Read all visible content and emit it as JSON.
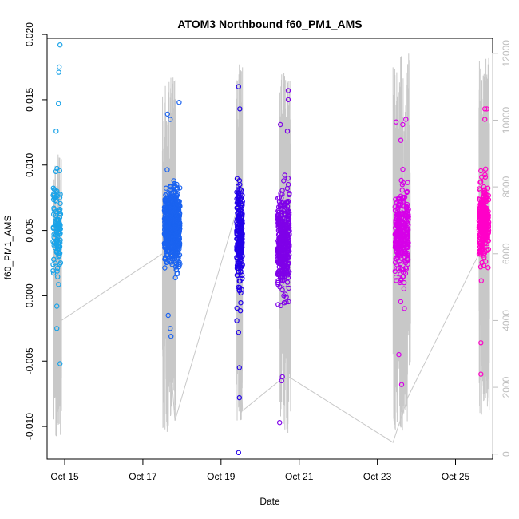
{
  "chart_data": {
    "type": "scatter",
    "title": "ATOM3 Northbound f60_PM1_AMS",
    "xlabel": "Date",
    "ylabel": "f60_PM1_AMS",
    "xlim": [
      14.55,
      25.95
    ],
    "ylim": [
      -0.0125,
      0.0197
    ],
    "y2lim": [
      -150,
      12450
    ],
    "x_ticks": [
      15,
      17,
      19,
      21,
      23,
      25
    ],
    "x_tick_labels": [
      "Oct 15",
      "Oct 17",
      "Oct 19",
      "Oct 21",
      "Oct 23",
      "Oct 25"
    ],
    "y_ticks": [
      -0.01,
      -0.005,
      0.0,
      0.005,
      0.01,
      0.015,
      0.02
    ],
    "y_tick_labels": [
      "-0.010",
      "-0.005",
      "0.000",
      "0.005",
      "0.010",
      "0.015",
      "0.020"
    ],
    "y2_ticks": [
      0,
      2000,
      4000,
      6000,
      8000,
      10000,
      12000
    ],
    "y2_tick_labels": [
      "0",
      "2000",
      "4000",
      "6000",
      "8000",
      "10000",
      "12000"
    ],
    "series": [
      {
        "name": "f60_PM1_AMS (flight 1)",
        "color": "#1aa3e8",
        "x_range": [
          14.7,
          14.9
        ],
        "y_center": 0.0052,
        "y_spread": 0.0033,
        "n": 110,
        "extremes": [
          [
            14.88,
            0.0192
          ],
          [
            14.86,
            0.0175
          ],
          [
            14.85,
            0.0171
          ],
          [
            14.84,
            0.0147
          ],
          [
            14.78,
            0.0126
          ],
          [
            14.88,
            -0.0052
          ],
          [
            14.8,
            -0.0025
          ],
          [
            14.8,
            -0.0008
          ]
        ]
      },
      {
        "name": "f60_PM1_AMS (flight 2)",
        "color": "#1a63f0",
        "x_range": [
          17.55,
          17.95
        ],
        "y_center": 0.0053,
        "y_spread": 0.0025,
        "n": 650,
        "extremes": [
          [
            17.93,
            0.0148
          ],
          [
            17.63,
            0.0139
          ],
          [
            17.7,
            0.0135
          ],
          [
            17.72,
            -0.0031
          ],
          [
            17.7,
            -0.0025
          ],
          [
            17.65,
            -0.0015
          ]
        ]
      },
      {
        "name": "f60_PM1_AMS (flight 3)",
        "color": "#2200e8",
        "x_range": [
          19.4,
          19.55
        ],
        "y_center": 0.0045,
        "y_spread": 0.0035,
        "n": 230,
        "extremes": [
          [
            19.45,
            0.016
          ],
          [
            19.48,
            0.0143
          ],
          [
            19.45,
            -0.012
          ],
          [
            19.47,
            -0.0078
          ],
          [
            19.47,
            -0.0055
          ],
          [
            19.45,
            -0.0028
          ]
        ]
      },
      {
        "name": "f60_PM1_AMS (flight 4)",
        "color": "#7f00e8",
        "x_range": [
          20.45,
          20.75
        ],
        "y_center": 0.004,
        "y_spread": 0.0035,
        "n": 380,
        "extremes": [
          [
            20.72,
            0.0157
          ],
          [
            20.72,
            0.015
          ],
          [
            20.52,
            0.0131
          ],
          [
            20.7,
            0.0126
          ],
          [
            20.5,
            -0.0097
          ],
          [
            20.55,
            -0.0065
          ],
          [
            20.57,
            -0.0062
          ]
        ]
      },
      {
        "name": "f60_PM1_AMS (flight 5)",
        "color": "#d600e8",
        "x_range": [
          23.45,
          23.8
        ],
        "y_center": 0.0045,
        "y_spread": 0.003,
        "n": 300,
        "extremes": [
          [
            23.73,
            0.0135
          ],
          [
            23.48,
            0.0133
          ],
          [
            23.65,
            0.0131
          ],
          [
            23.6,
            0.0119
          ],
          [
            23.62,
            -0.0068
          ],
          [
            23.55,
            -0.0045
          ]
        ]
      },
      {
        "name": "f60_PM1_AMS (flight 6)",
        "color": "#ff00c8",
        "x_range": [
          25.6,
          25.85
        ],
        "y_center": 0.0058,
        "y_spread": 0.0025,
        "n": 300,
        "extremes": [
          [
            25.75,
            0.0143
          ],
          [
            25.8,
            0.0143
          ],
          [
            25.75,
            0.0135
          ],
          [
            25.65,
            -0.006
          ],
          [
            25.65,
            -0.0036
          ]
        ]
      }
    ],
    "secondary_series": {
      "name": "altitude (right axis)",
      "color": "#c8c8c8",
      "connector_points": [
        [
          14.85,
          3950
        ],
        [
          17.5,
          6000
        ],
        [
          17.82,
          1000
        ],
        [
          19.4,
          7300
        ],
        [
          19.55,
          1300
        ],
        [
          20.5,
          2200
        ],
        [
          20.75,
          2300
        ],
        [
          23.4,
          350
        ],
        [
          23.78,
          1700
        ],
        [
          25.6,
          6000
        ]
      ],
      "flight_profiles": [
        {
          "x_range": [
            14.72,
            14.92
          ],
          "max": 9000,
          "min": 50
        },
        {
          "x_range": [
            17.5,
            17.85
          ],
          "max": 11300,
          "min": 50
        },
        {
          "x_range": [
            19.4,
            19.55
          ],
          "max": 11800,
          "min": 400
        },
        {
          "x_range": [
            20.5,
            20.78
          ],
          "max": 11600,
          "min": 50
        },
        {
          "x_range": [
            23.4,
            23.85
          ],
          "max": 12000,
          "min": 50
        },
        {
          "x_range": [
            25.6,
            25.87
          ],
          "max": 11900,
          "min": 600
        }
      ]
    },
    "grid": false,
    "legend": "none"
  }
}
